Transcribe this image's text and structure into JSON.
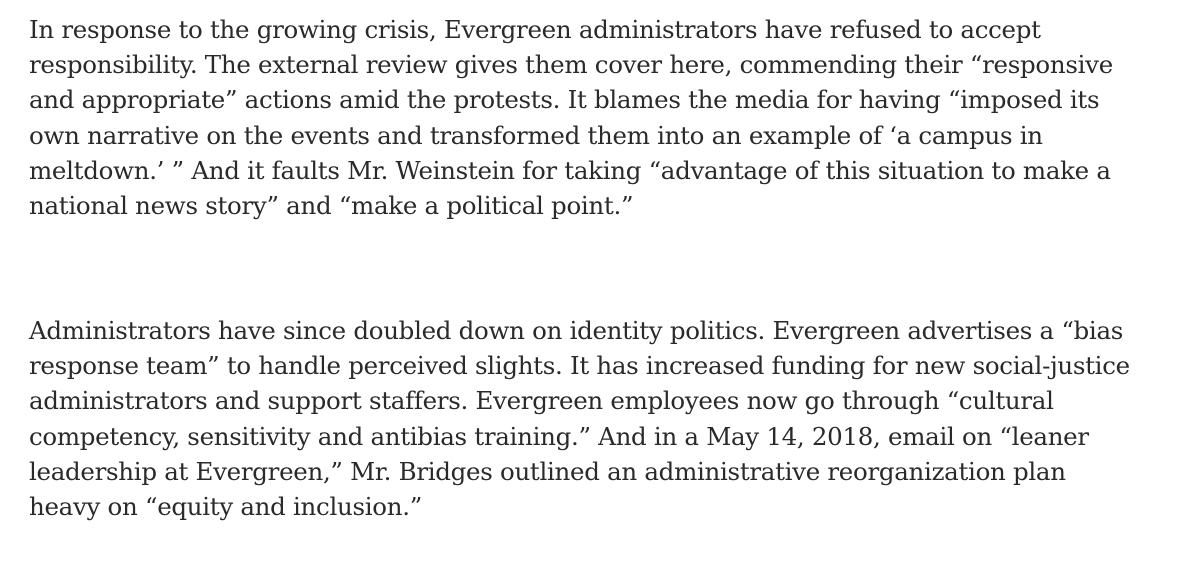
{
  "article": {
    "paragraphs": [
      {
        "lines": [
          "In response to the growing crisis, Evergreen administrators have refused to accept",
          "responsibility. The external review gives them cover here, commending their “responsive",
          "and appropriate” actions amid the protests. It blames the media for having “imposed its",
          "own narrative on the events and transformed them into an example of ‘a campus in",
          "meltdown.’ ” And it faults Mr. Weinstein for taking “advantage of this situation to make a",
          "national news story” and “make a political point.”"
        ]
      },
      {
        "lines": [
          "Administrators have since doubled down on identity politics. Evergreen advertises a “bias",
          "response team” to handle perceived slights. It has increased funding for new social-justice",
          "administrators and support staffers. Evergreen employees now go through “cultural",
          "competency, sensitivity and antibias training.” And in a May 14, 2018, email on “leaner",
          "leadership at Evergreen,” Mr. Bridges outlined an administrative reorganization plan",
          "heavy on “equity and inclusion.”"
        ]
      }
    ]
  }
}
